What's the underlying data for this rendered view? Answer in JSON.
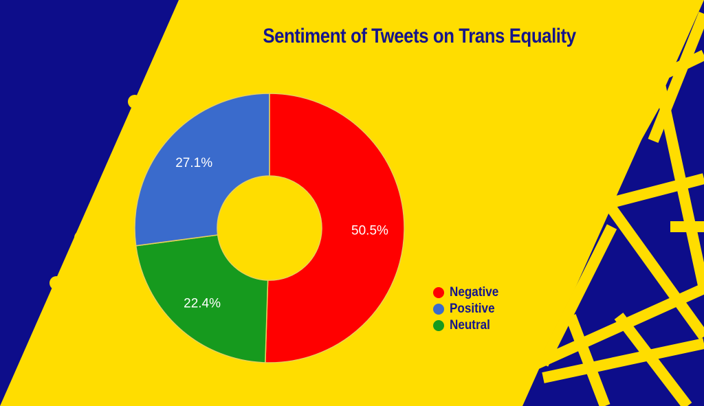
{
  "chart_data": {
    "type": "pie",
    "style": "donut",
    "title": "Sentiment of Tweets on Trans Equality",
    "slices": [
      {
        "label": "Negative",
        "value": 50.5,
        "display": "50.5%",
        "color": "#ff0000"
      },
      {
        "label": "Neutral",
        "value": 22.4,
        "display": "22.4%",
        "color": "#169a1e"
      },
      {
        "label": "Positive",
        "value": 27.1,
        "display": "27.1%",
        "color": "#3a6bcc"
      }
    ],
    "legend": {
      "placement": "bottom-right",
      "items": [
        {
          "label": "Negative",
          "color": "#ff0000"
        },
        {
          "label": "Positive",
          "color": "#3a6bcc"
        },
        {
          "label": "Neutral",
          "color": "#169a1e"
        }
      ]
    }
  },
  "colors": {
    "background": "#ffdd00",
    "decor_blue": "#0d0d8a",
    "decor_yellow": "#ffdd00",
    "title": "#14148c",
    "label_text": "#ffffff"
  }
}
